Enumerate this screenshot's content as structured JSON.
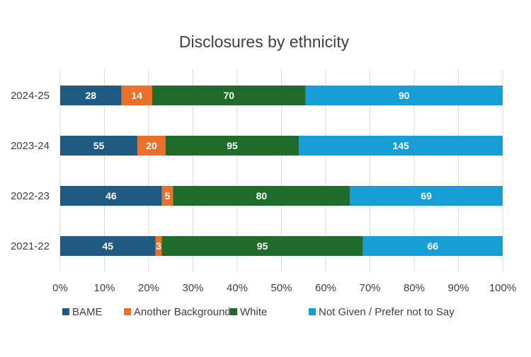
{
  "chart_data": {
    "type": "bar",
    "orientation": "horizontal",
    "stacked": "percent",
    "title": "Disclosures by ethnicity",
    "categories": [
      "2024-25",
      "2023-24",
      "2022-23",
      "2021-22"
    ],
    "series": [
      {
        "name": "BAME",
        "color": "#1F5A83",
        "values": [
          28,
          55,
          46,
          45
        ]
      },
      {
        "name": "Another Background",
        "color": "#E8712B",
        "values": [
          14,
          20,
          5,
          3
        ]
      },
      {
        "name": "White",
        "color": "#1E6B2A",
        "values": [
          70,
          95,
          80,
          95
        ]
      },
      {
        "name": "Not Given / Prefer not to Say",
        "color": "#189ED6",
        "values": [
          90,
          145,
          69,
          66
        ]
      }
    ],
    "x_ticks": [
      "0%",
      "10%",
      "20%",
      "30%",
      "40%",
      "50%",
      "60%",
      "70%",
      "80%",
      "90%",
      "100%"
    ],
    "xlim": [
      0,
      100
    ],
    "grid": "vertical",
    "legend": "bottom",
    "data_labels": true
  }
}
